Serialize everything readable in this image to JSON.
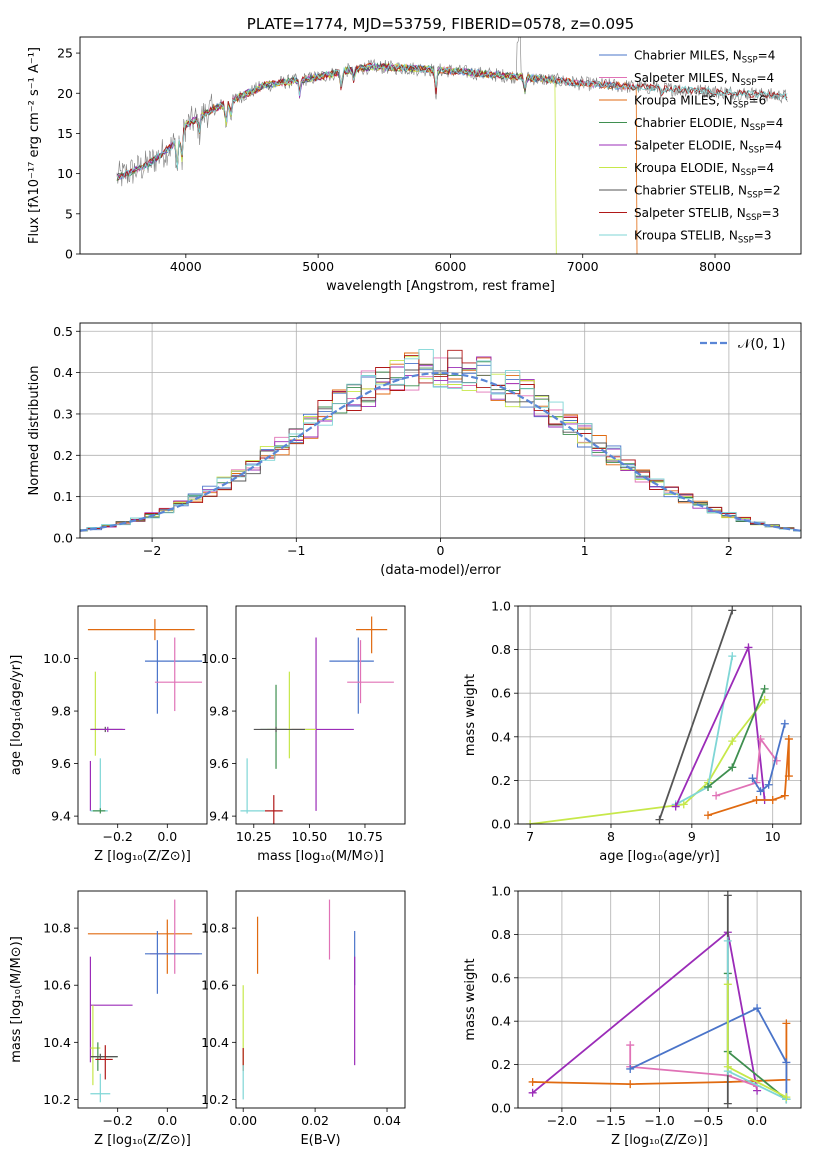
{
  "palette": {
    "Chabrier MILES": "#4a74c9",
    "Salpeter MILES": "#e072b6",
    "Kroupa MILES": "#e06a10",
    "Chabrier ELODIE": "#3f8f50",
    "Salpeter ELODIE": "#9b2cb8",
    "Kroupa ELODIE": "#c7e84a",
    "Chabrier STELIB": "#555555",
    "Salpeter STELIB": "#b01818",
    "Kroupa STELIB": "#7fd6d6",
    "gauss": "#5a86d6"
  },
  "chart_data": [
    {
      "id": "spectrum",
      "type": "line",
      "title": "PLATE=1774, MJD=53759, FIBERID=0578, z=0.095",
      "xlabel": "wavelength [Angstrom, rest frame]",
      "ylabel": "Flux [fλ10⁻¹⁷ erg cm⁻² s⁻¹ A⁻¹]",
      "xlim": [
        3200,
        8650
      ],
      "ylim": [
        0,
        27
      ],
      "xticks": [
        4000,
        5000,
        6000,
        7000,
        8000
      ],
      "yticks": [
        0,
        5,
        10,
        15,
        20,
        25
      ],
      "grid": false,
      "legend": "top-right",
      "continuum_x": [
        3480,
        3700,
        3900,
        4000,
        4200,
        4400,
        4600,
        4800,
        5000,
        5200,
        5400,
        5600,
        5800,
        6000,
        6200,
        6400,
        6600,
        6800,
        7000,
        7200,
        7400,
        7600,
        7800,
        8000,
        8200,
        8400,
        8550
      ],
      "continuum_y": [
        9.5,
        11,
        13.5,
        16,
        18,
        19.5,
        21,
        21.5,
        22,
        22.8,
        23.3,
        23.2,
        23.0,
        22.8,
        22.5,
        22.2,
        21.9,
        21.6,
        21.2,
        21.0,
        20.8,
        20.6,
        20.4,
        20.2,
        20.0,
        19.8,
        19.6
      ],
      "series": [
        {
          "name": "Chabrier MILES",
          "nssp": "4"
        },
        {
          "name": "Salpeter MILES",
          "nssp": "4"
        },
        {
          "name": "Kroupa MILES",
          "nssp": "6"
        },
        {
          "name": "Chabrier ELODIE",
          "nssp": "4"
        },
        {
          "name": "Salpeter ELODIE",
          "nssp": "4"
        },
        {
          "name": "Kroupa ELODIE",
          "nssp": "4"
        },
        {
          "name": "Chabrier STELIB",
          "nssp": "2"
        },
        {
          "name": "Salpeter STELIB",
          "nssp": "3"
        },
        {
          "name": "Kroupa STELIB",
          "nssp": "3"
        }
      ],
      "ssp_label": "N",
      "ssp_sub": "SSP"
    },
    {
      "id": "residuals",
      "type": "line",
      "xlabel": "(data-model)/error",
      "ylabel": "Normed distribution",
      "xlim": [
        -2.5,
        2.5
      ],
      "ylim": [
        0,
        0.52
      ],
      "xticks": [
        -2,
        -1,
        0,
        1,
        2
      ],
      "yticks": [
        0.0,
        0.1,
        0.2,
        0.3,
        0.4,
        0.5
      ],
      "grid": true,
      "legend": "top-right",
      "gaussian_label": "𝒩(0, 1)",
      "bin_width": 0.1
    },
    {
      "id": "age-vs-Z",
      "type": "scatter",
      "xlabel": "Z [log₁₀(Z/Z⊙)]",
      "ylabel": "age  [log₁₀(age/yr)]",
      "xlim": [
        -0.36,
        0.16
      ],
      "ylim": [
        9.37,
        10.2
      ],
      "xticks": [
        -0.2,
        0.0
      ],
      "yticks": [
        9.4,
        9.6,
        9.8,
        10.0
      ],
      "points": [
        {
          "s": "Kroupa MILES",
          "x": -0.05,
          "y": 10.11,
          "xlo": -0.32,
          "xhi": 0.11,
          "ylo": 10.07,
          "yhi": 10.15
        },
        {
          "s": "Chabrier MILES",
          "x": -0.04,
          "y": 9.99,
          "xlo": -0.09,
          "xhi": 0.14,
          "ylo": 9.79,
          "yhi": 10.07
        },
        {
          "s": "Salpeter MILES",
          "x": 0.03,
          "y": 9.91,
          "xlo": -0.05,
          "xhi": 0.14,
          "ylo": 9.8,
          "yhi": 10.08
        },
        {
          "s": "Kroupa ELODIE",
          "x": -0.29,
          "y": 9.73,
          "xlo": -0.31,
          "xhi": -0.26,
          "ylo": 9.63,
          "yhi": 9.95
        },
        {
          "s": "Chabrier STELIB",
          "x": -0.25,
          "y": 9.73,
          "xlo": -0.31,
          "xhi": -0.18,
          "ylo": 9.72,
          "yhi": 9.74
        },
        {
          "s": "Salpeter ELODIE",
          "x": -0.24,
          "y": 9.73,
          "xlo": -0.31,
          "xhi": -0.17,
          "ylo": 9.72,
          "yhi": 9.74
        },
        {
          "s": "Salpeter ELODIE",
          "x": -0.31,
          "y": 9.52,
          "xlo": -0.31,
          "xhi": -0.31,
          "ylo": 9.42,
          "yhi": 9.61
        },
        {
          "s": "Kroupa STELIB",
          "x": -0.27,
          "y": 9.42,
          "xlo": -0.31,
          "xhi": -0.24,
          "ylo": 9.42,
          "yhi": 9.62
        },
        {
          "s": "Chabrier ELODIE",
          "x": -0.27,
          "y": 9.42,
          "xlo": -0.3,
          "xhi": -0.25,
          "ylo": 9.41,
          "yhi": 9.43
        }
      ]
    },
    {
      "id": "age-vs-mass",
      "type": "scatter",
      "xlabel": "mass [log₁₀(M/M⊙)]",
      "xlim": [
        10.17,
        10.93
      ],
      "ylim": [
        9.37,
        10.2
      ],
      "xticks": [
        10.25,
        10.5,
        10.75
      ],
      "yticks": [
        9.4,
        9.6,
        9.8,
        10.0
      ],
      "points": [
        {
          "s": "Kroupa MILES",
          "x": 10.78,
          "y": 10.11,
          "xlo": 10.71,
          "xhi": 10.85,
          "ylo": 10.02,
          "yhi": 10.16
        },
        {
          "s": "Chabrier MILES",
          "x": 10.72,
          "y": 9.99,
          "xlo": 10.59,
          "xhi": 10.79,
          "ylo": 9.79,
          "yhi": 10.08
        },
        {
          "s": "Salpeter MILES",
          "x": 10.73,
          "y": 9.91,
          "xlo": 10.67,
          "xhi": 10.88,
          "ylo": 9.83,
          "yhi": 10.07
        },
        {
          "s": "Salpeter ELODIE",
          "x": 10.53,
          "y": 9.73,
          "xlo": 10.42,
          "xhi": 10.7,
          "ylo": 9.42,
          "yhi": 10.08
        },
        {
          "s": "Kroupa ELODIE",
          "x": 10.41,
          "y": 9.73,
          "xlo": 10.31,
          "xhi": 10.53,
          "ylo": 9.62,
          "yhi": 9.95
        },
        {
          "s": "Chabrier ELODIE",
          "x": 10.35,
          "y": 9.73,
          "xlo": 10.28,
          "xhi": 10.4,
          "ylo": 9.58,
          "yhi": 9.9
        },
        {
          "s": "Chabrier STELIB",
          "x": 10.35,
          "y": 9.73,
          "xlo": 10.25,
          "xhi": 10.48,
          "ylo": 9.72,
          "yhi": 9.74
        },
        {
          "s": "Salpeter STELIB",
          "x": 10.34,
          "y": 9.42,
          "xlo": 10.3,
          "xhi": 10.38,
          "ylo": 9.35,
          "yhi": 9.48
        },
        {
          "s": "Kroupa STELIB",
          "x": 10.22,
          "y": 9.42,
          "xlo": 10.19,
          "xhi": 10.3,
          "ylo": 9.41,
          "yhi": 9.62
        }
      ]
    },
    {
      "id": "weight-vs-age",
      "type": "line",
      "xlabel": "age  [log₁₀(age/yr)]",
      "ylabel": "mass weight",
      "xlim": [
        6.85,
        10.35
      ],
      "ylim": [
        0,
        1
      ],
      "xticks": [
        7,
        8,
        9,
        10
      ],
      "yticks": [
        0.0,
        0.2,
        0.4,
        0.6,
        0.8,
        1.0
      ],
      "grid": true,
      "series": [
        {
          "s": "Kroupa ELODIE",
          "x": [
            7.0,
            8.9,
            9.2,
            9.5,
            9.9
          ],
          "y": [
            0.0,
            0.09,
            0.19,
            0.38,
            0.57
          ]
        },
        {
          "s": "Chabrier STELIB",
          "x": [
            8.6,
            9.5
          ],
          "y": [
            0.02,
            0.98
          ]
        },
        {
          "s": "Kroupa STELIB",
          "x": [
            8.8,
            9.2,
            9.5
          ],
          "y": [
            0.09,
            0.17,
            0.77
          ]
        },
        {
          "s": "Salpeter ELODIE",
          "x": [
            8.8,
            9.7,
            9.9
          ],
          "y": [
            0.08,
            0.81,
            0.11
          ]
        },
        {
          "s": "Chabrier ELODIE",
          "x": [
            9.2,
            9.5,
            9.9
          ],
          "y": [
            0.17,
            0.26,
            0.62
          ]
        },
        {
          "s": "Salpeter MILES",
          "x": [
            9.3,
            9.8,
            9.85,
            10.05
          ],
          "y": [
            0.13,
            0.19,
            0.39,
            0.29
          ]
        },
        {
          "s": "Chabrier MILES",
          "x": [
            9.75,
            9.85,
            9.95,
            10.15
          ],
          "y": [
            0.21,
            0.15,
            0.18,
            0.46
          ]
        },
        {
          "s": "Kroupa MILES",
          "x": [
            9.2,
            9.8,
            10.0,
            10.15,
            10.2
          ],
          "y": [
            0.04,
            0.11,
            0.11,
            0.13,
            0.39
          ]
        },
        {
          "s": "Kroupa MILES",
          "x": [
            10.2,
            10.2
          ],
          "y": [
            0.22,
            0.39
          ]
        }
      ]
    },
    {
      "id": "mass-vs-Z",
      "type": "scatter",
      "xlabel": "Z [log₁₀(Z/Z⊙)]",
      "ylabel": "mass [log₁₀(M/M⊙)]",
      "xlim": [
        -0.36,
        0.16
      ],
      "ylim": [
        10.17,
        10.93
      ],
      "xticks": [
        -0.2,
        0.0
      ],
      "yticks": [
        10.2,
        10.4,
        10.6,
        10.8
      ],
      "points": [
        {
          "s": "Kroupa MILES",
          "x": 0.0,
          "y": 10.78,
          "xlo": -0.32,
          "xhi": 0.1,
          "ylo": 10.64,
          "yhi": 10.83
        },
        {
          "s": "Salpeter MILES",
          "x": 0.03,
          "y": 10.71,
          "xlo": -0.07,
          "xhi": 0.13,
          "ylo": 10.64,
          "yhi": 10.9
        },
        {
          "s": "Chabrier MILES",
          "x": -0.04,
          "y": 10.71,
          "xlo": -0.09,
          "xhi": 0.14,
          "ylo": 10.57,
          "yhi": 10.79
        },
        {
          "s": "Salpeter ELODIE",
          "x": -0.31,
          "y": 10.53,
          "xlo": -0.31,
          "xhi": -0.14,
          "ylo": 10.33,
          "yhi": 10.7
        },
        {
          "s": "Kroupa ELODIE",
          "x": -0.3,
          "y": 10.38,
          "xlo": -0.31,
          "xhi": -0.27,
          "ylo": 10.25,
          "yhi": 10.53
        },
        {
          "s": "Chabrier ELODIE",
          "x": -0.28,
          "y": 10.35,
          "xlo": -0.31,
          "xhi": -0.2,
          "ylo": 10.3,
          "yhi": 10.4
        },
        {
          "s": "Chabrier STELIB",
          "x": -0.27,
          "y": 10.35,
          "xlo": -0.31,
          "xhi": -0.2,
          "ylo": 10.34,
          "yhi": 10.36
        },
        {
          "s": "Salpeter STELIB",
          "x": -0.25,
          "y": 10.34,
          "xlo": -0.29,
          "xhi": -0.22,
          "ylo": 10.27,
          "yhi": 10.39
        },
        {
          "s": "Kroupa STELIB",
          "x": -0.27,
          "y": 10.22,
          "xlo": -0.31,
          "xhi": -0.23,
          "ylo": 10.19,
          "yhi": 10.29
        }
      ]
    },
    {
      "id": "mass-vs-EBV",
      "type": "scatter",
      "xlabel": "E(B-V)",
      "xlim": [
        -0.002,
        0.045
      ],
      "ylim": [
        10.17,
        10.93
      ],
      "xticks": [
        0.0,
        0.02,
        0.04
      ],
      "yticks": [
        10.2,
        10.4,
        10.6,
        10.8
      ],
      "points": [
        {
          "s": "Kroupa MILES",
          "x": 0.004,
          "y": 10.78,
          "xlo": 0.004,
          "xhi": 0.004,
          "ylo": 10.64,
          "yhi": 10.84
        },
        {
          "s": "Salpeter MILES",
          "x": 0.024,
          "y": 10.79,
          "xlo": 0.024,
          "xhi": 0.024,
          "ylo": 10.69,
          "yhi": 10.9
        },
        {
          "s": "Chabrier MILES",
          "x": 0.031,
          "y": 10.71,
          "xlo": 0.031,
          "xhi": 0.031,
          "ylo": 10.6,
          "yhi": 10.79
        },
        {
          "s": "Salpeter ELODIE",
          "x": 0.031,
          "y": 10.53,
          "xlo": 0.031,
          "xhi": 0.031,
          "ylo": 10.32,
          "yhi": 10.7
        },
        {
          "s": "Kroupa ELODIE",
          "x": 0.0,
          "y": 10.45,
          "xlo": 0.0,
          "xhi": 0.0,
          "ylo": 10.3,
          "yhi": 10.6
        },
        {
          "s": "Salpeter STELIB",
          "x": 0.0,
          "y": 10.34,
          "xlo": 0.0,
          "xhi": 0.0,
          "ylo": 10.3,
          "yhi": 10.38
        },
        {
          "s": "Kroupa STELIB",
          "x": 0.0,
          "y": 10.25,
          "xlo": 0.0,
          "xhi": 0.0,
          "ylo": 10.2,
          "yhi": 10.32
        }
      ]
    },
    {
      "id": "weight-vs-Z",
      "type": "line",
      "xlabel": "Z [log₁₀(Z/Z⊙)]",
      "ylabel": "mass weight",
      "xlim": [
        -2.45,
        0.45
      ],
      "ylim": [
        0,
        1
      ],
      "xticks": [
        -2.0,
        -1.5,
        -1.0,
        -0.5,
        0.0
      ],
      "yticks": [
        0.0,
        0.2,
        0.4,
        0.6,
        0.8,
        1.0
      ],
      "grid": true,
      "series": [
        {
          "s": "Salpeter ELODIE",
          "x": [
            -2.3,
            -0.3,
            0.0
          ],
          "y": [
            0.07,
            0.81,
            0.08
          ]
        },
        {
          "s": "Kroupa MILES",
          "x": [
            -2.3,
            -1.3,
            -0.3,
            0.3,
            0.3
          ],
          "y": [
            0.12,
            0.11,
            0.12,
            0.13,
            0.39
          ]
        },
        {
          "s": "Salpeter MILES",
          "x": [
            -1.3,
            -1.3,
            -0.3,
            0.0
          ],
          "y": [
            0.29,
            0.19,
            0.15,
            0.1
          ]
        },
        {
          "s": "Chabrier MILES",
          "x": [
            -1.3,
            0.0,
            0.3,
            0.3
          ],
          "y": [
            0.18,
            0.46,
            0.21,
            0.04
          ]
        },
        {
          "s": "Chabrier STELIB",
          "x": [
            -0.3,
            -0.3
          ],
          "y": [
            0.02,
            0.98
          ]
        },
        {
          "s": "Chabrier ELODIE",
          "x": [
            -0.3,
            -0.3,
            0.3
          ],
          "y": [
            0.62,
            0.26,
            0.04
          ]
        },
        {
          "s": "Kroupa STELIB",
          "x": [
            -0.3,
            -0.3,
            0.3
          ],
          "y": [
            0.77,
            0.17,
            0.04
          ]
        },
        {
          "s": "Kroupa ELODIE",
          "x": [
            -0.3,
            -0.3,
            0.3
          ],
          "y": [
            0.57,
            0.19,
            0.05
          ]
        }
      ]
    }
  ]
}
